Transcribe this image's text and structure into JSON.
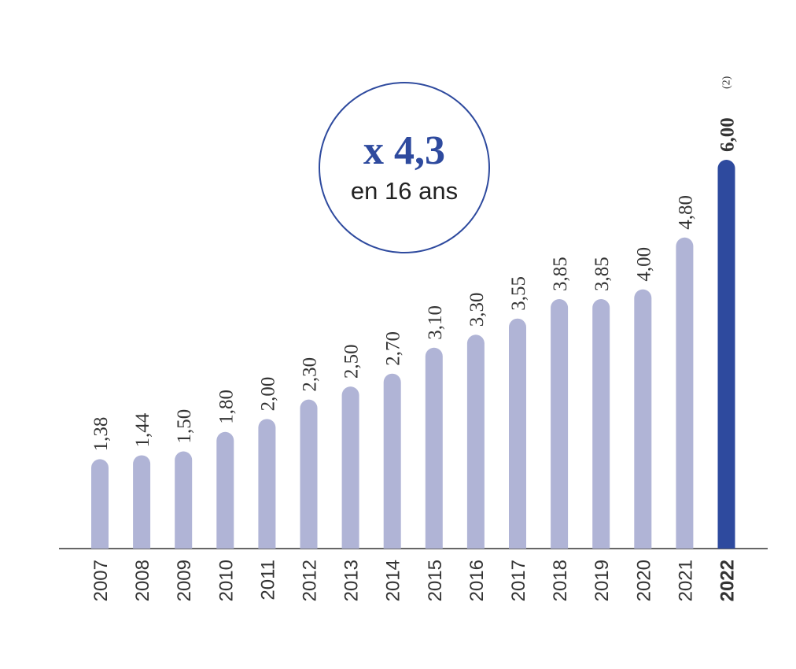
{
  "chart_data": {
    "type": "bar",
    "categories": [
      "2007",
      "2008",
      "2009",
      "2010",
      "2011",
      "2012",
      "2013",
      "2014",
      "2015",
      "2016",
      "2017",
      "2018",
      "2019",
      "2020",
      "2021",
      "2022"
    ],
    "values": [
      1.38,
      1.44,
      1.5,
      1.8,
      2.0,
      2.3,
      2.5,
      2.7,
      3.1,
      3.3,
      3.55,
      3.85,
      3.85,
      4.0,
      4.8,
      6.0
    ],
    "value_labels": [
      "1,38",
      "1,44",
      "1,50",
      "1,80",
      "2,00",
      "2,30",
      "2,50",
      "2,70",
      "3,10",
      "3,30",
      "3,55",
      "3,85",
      "3,85",
      "4,00",
      "4,80",
      "6,00"
    ],
    "colors": [
      "#b0b4d6",
      "#b0b4d6",
      "#b0b4d6",
      "#b0b4d6",
      "#b0b4d6",
      "#b0b4d6",
      "#b0b4d6",
      "#b0b4d6",
      "#b0b4d6",
      "#b0b4d6",
      "#b0b4d6",
      "#b0b4d6",
      "#b0b4d6",
      "#b0b4d6",
      "#b0b4d6",
      "#2e4a9e"
    ],
    "footnote": "(2)",
    "annotation": {
      "headline": "x 4,3",
      "subtitle": "en 16 ans"
    }
  }
}
